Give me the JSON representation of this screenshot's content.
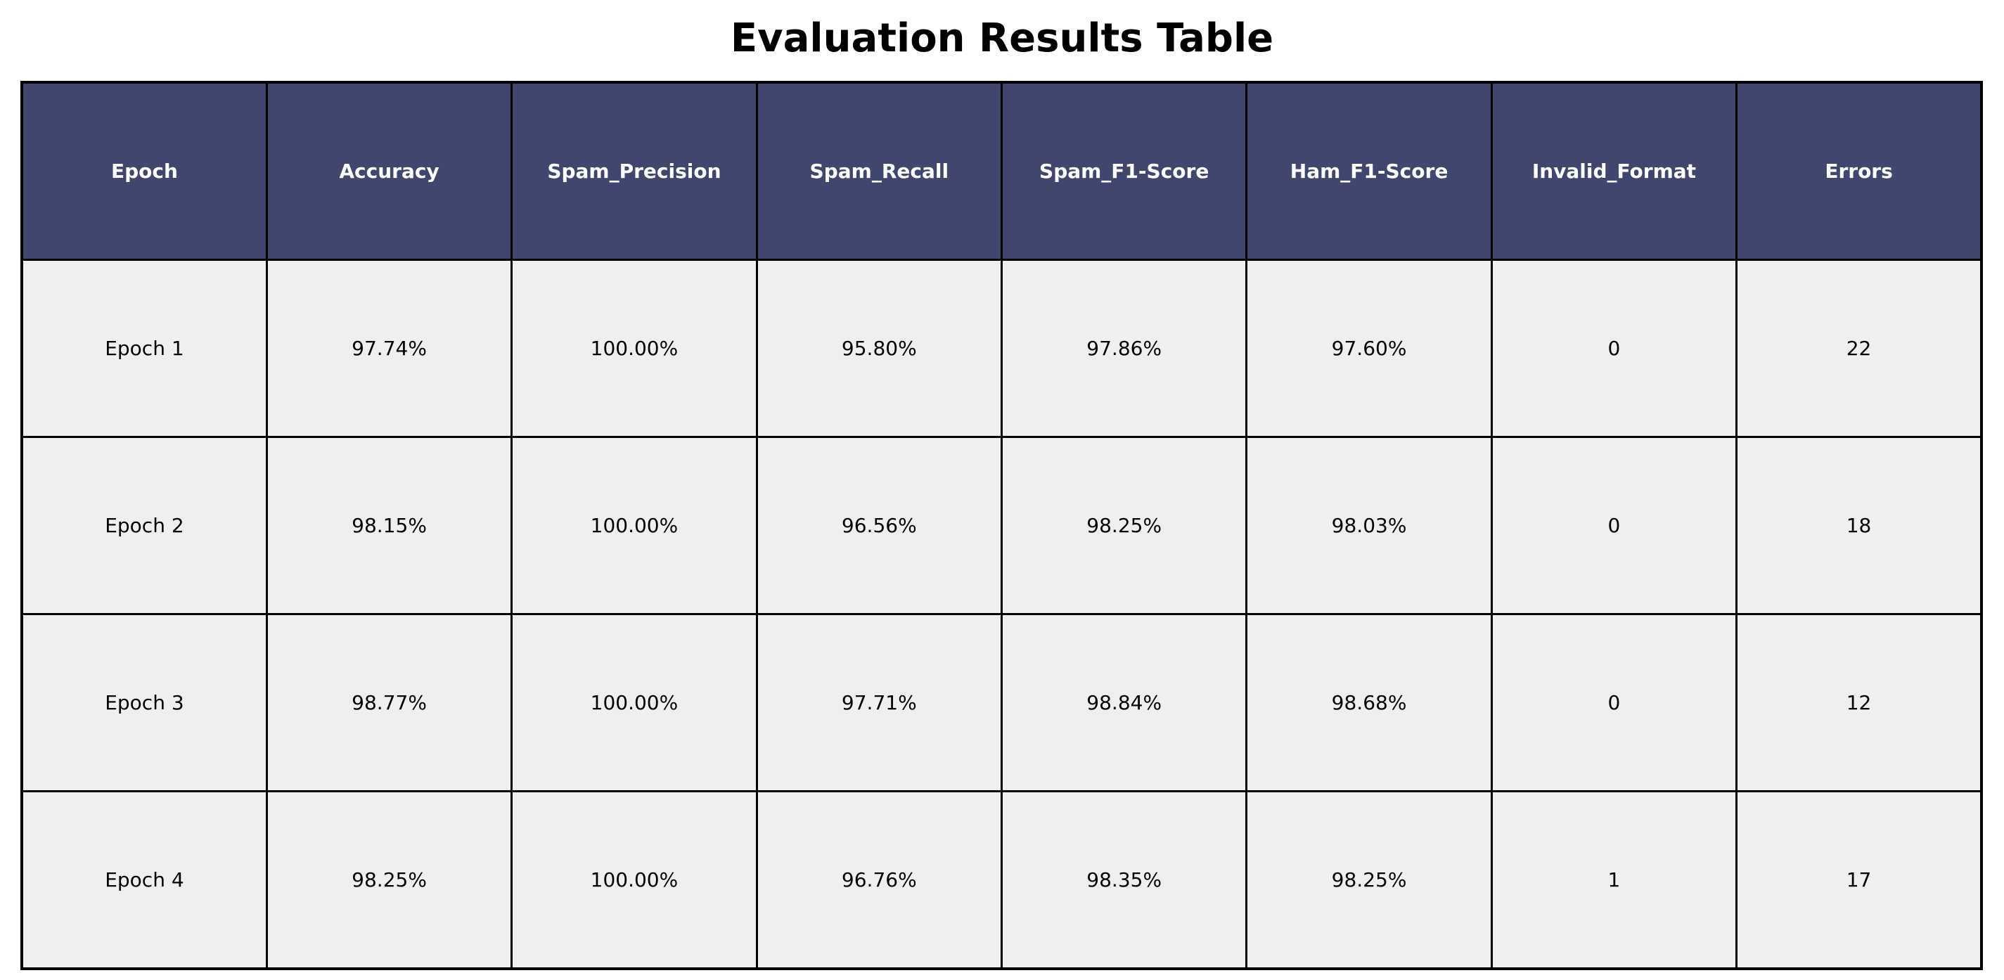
{
  "chart_data": {
    "type": "table",
    "title": "Evaluation Results Table",
    "columns": [
      "Epoch",
      "Accuracy",
      "Spam_Precision",
      "Spam_Recall",
      "Spam_F1-Score",
      "Ham_F1-Score",
      "Invalid_Format",
      "Errors"
    ],
    "rows": [
      [
        "Epoch 1",
        "97.74%",
        "100.00%",
        "95.80%",
        "97.86%",
        "97.60%",
        "0",
        "22"
      ],
      [
        "Epoch 2",
        "98.15%",
        "100.00%",
        "96.56%",
        "98.25%",
        "98.03%",
        "0",
        "18"
      ],
      [
        "Epoch 3",
        "98.77%",
        "100.00%",
        "97.71%",
        "98.84%",
        "98.68%",
        "0",
        "12"
      ],
      [
        "Epoch 4",
        "98.25%",
        "100.00%",
        "96.76%",
        "98.35%",
        "98.25%",
        "1",
        "17"
      ]
    ],
    "grid": true
  },
  "colors": {
    "header_background": "#40466e",
    "header_text": "#ffffff",
    "cell_background": "#efefef",
    "cell_text": "#000000",
    "border": "#000000"
  }
}
